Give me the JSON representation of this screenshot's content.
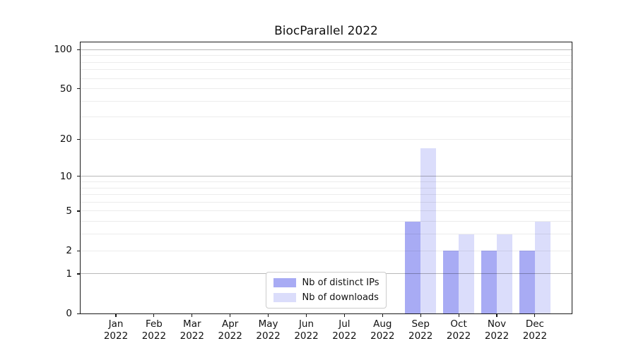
{
  "chart_data": {
    "type": "bar",
    "title": "BiocParallel 2022",
    "categories": [
      {
        "label": "Jan",
        "sublabel": "2022"
      },
      {
        "label": "Feb",
        "sublabel": "2022"
      },
      {
        "label": "Mar",
        "sublabel": "2022"
      },
      {
        "label": "Apr",
        "sublabel": "2022"
      },
      {
        "label": "May",
        "sublabel": "2022"
      },
      {
        "label": "Jun",
        "sublabel": "2022"
      },
      {
        "label": "Jul",
        "sublabel": "2022"
      },
      {
        "label": "Aug",
        "sublabel": "2022"
      },
      {
        "label": "Sep",
        "sublabel": "2022"
      },
      {
        "label": "Oct",
        "sublabel": "2022"
      },
      {
        "label": "Nov",
        "sublabel": "2022"
      },
      {
        "label": "Dec",
        "sublabel": "2022"
      }
    ],
    "series": [
      {
        "name": "Nb of distinct IPs",
        "color": "#a8abf4",
        "values": [
          0,
          0,
          0,
          0,
          0,
          0,
          0,
          0,
          4,
          2,
          2,
          2
        ]
      },
      {
        "name": "Nb of downloads",
        "color": "#dbddfb",
        "values": [
          0,
          0,
          0,
          0,
          0,
          0,
          0,
          0,
          17,
          3,
          3,
          4
        ]
      }
    ],
    "yticks": [
      0,
      1,
      2,
      5,
      10,
      20,
      50,
      100
    ],
    "grid_major": [
      1,
      10,
      100
    ],
    "grid_minor": [
      2,
      3,
      4,
      5,
      6,
      7,
      8,
      9,
      20,
      30,
      40,
      50,
      60,
      70,
      80,
      90
    ],
    "scale": "log1p",
    "ylim": [
      0,
      113.5
    ],
    "grid": "on",
    "legend_position": "lower center"
  }
}
